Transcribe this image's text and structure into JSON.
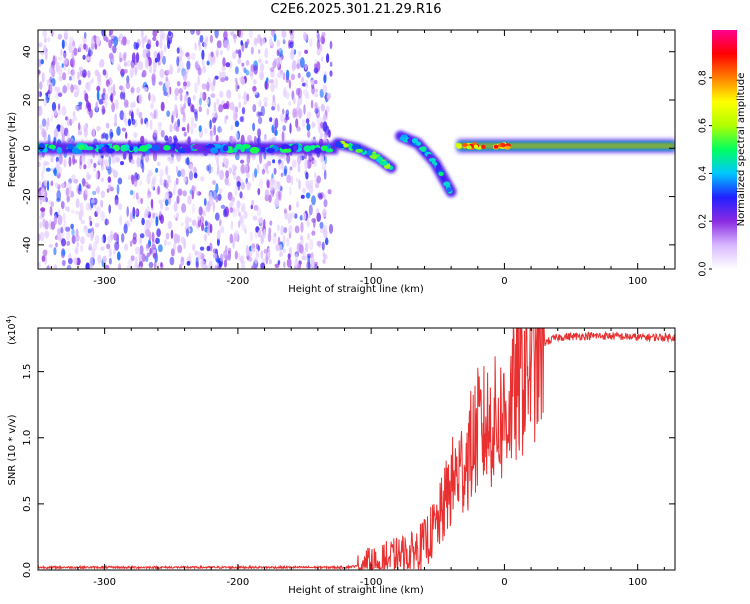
{
  "chart_data": [
    {
      "type": "heatmap",
      "title": "C2E6.2025.301.21.29.R16",
      "xlabel": "Height of straight line (km)",
      "ylabel": "Frequency (Hz)",
      "xlim": [
        -350,
        128
      ],
      "ylim": [
        -50,
        49
      ],
      "xticks": [
        -300,
        -200,
        -100,
        0,
        100
      ],
      "xtick_labels": [
        "-300",
        "-200",
        "-100",
        "0",
        "100"
      ],
      "yticks": [
        -40,
        -20,
        0,
        20,
        40
      ],
      "ytick_labels": [
        "-40",
        "-20",
        "0",
        "20",
        "40"
      ],
      "colorbar": {
        "label": "Normalized spectral amplitude",
        "range": [
          0,
          1
        ],
        "ticks": [
          0,
          0.2,
          0.4,
          0.6,
          0.8
        ],
        "tick_labels": [
          "0.0",
          "0.2",
          "0.4",
          "0.6",
          "0.8"
        ],
        "colors": [
          "#ffffff",
          "#d8b8ff",
          "#8a2be2",
          "#2020ff",
          "#00c8ff",
          "#00ff60",
          "#b0ff00",
          "#ffff00",
          "#ff8000",
          "#ff0000",
          "#ff0090"
        ]
      },
      "features": [
        {
          "name": "noise band",
          "x_range": [
            -350,
            -130
          ],
          "freq_range": [
            -50,
            49
          ],
          "amplitude": 0.1
        },
        {
          "name": "central line",
          "x_range": [
            -350,
            -125
          ],
          "freq": 0,
          "amplitude": 0.35
        },
        {
          "name": "descending trace A",
          "points": [
            [
              -125,
              2
            ],
            [
              -110,
              0
            ],
            [
              -95,
              -4
            ],
            [
              -85,
              -8
            ]
          ],
          "amplitude": 0.45
        },
        {
          "name": "descending trace B",
          "points": [
            [
              -78,
              5
            ],
            [
              -65,
              2
            ],
            [
              -52,
              -6
            ],
            [
              -40,
              -18
            ]
          ],
          "amplitude": 0.35
        },
        {
          "name": "direct signal",
          "x_range": [
            -35,
            128
          ],
          "freq": 1,
          "amplitude": 0.95
        }
      ]
    },
    {
      "type": "line",
      "xlabel": "Height of straight line (km)",
      "ylabel": "SNR (10 * v/v)",
      "y_multiplier": "(x10",
      "y_multiplier_exp": "4",
      "y_multiplier_close": ")",
      "xlim": [
        -350,
        128
      ],
      "ylim": [
        0,
        1.83
      ],
      "xticks": [
        -300,
        -200,
        -100,
        0,
        100
      ],
      "xtick_labels": [
        "-300",
        "-200",
        "-100",
        "0",
        "100"
      ],
      "yticks": [
        0,
        0.5,
        1.0,
        1.5
      ],
      "ytick_labels": [
        "0.0",
        "0.5",
        "1.0",
        "1.5"
      ],
      "series": [
        {
          "name": "SNR",
          "color": "#e83030",
          "x": [
            -350,
            -300,
            -250,
            -200,
            -150,
            -120,
            -100,
            -90,
            -80,
            -70,
            -60,
            -50,
            -40,
            -30,
            -20,
            -10,
            0,
            10,
            20,
            30,
            40,
            60,
            80,
            100,
            128
          ],
          "values": [
            0.02,
            0.02,
            0.02,
            0.02,
            0.02,
            0.02,
            0.04,
            0.07,
            0.1,
            0.12,
            0.2,
            0.35,
            0.65,
            0.8,
            1.05,
            1.1,
            1.15,
            1.4,
            1.62,
            1.72,
            1.76,
            1.77,
            1.77,
            1.76,
            1.76
          ]
        }
      ]
    }
  ]
}
